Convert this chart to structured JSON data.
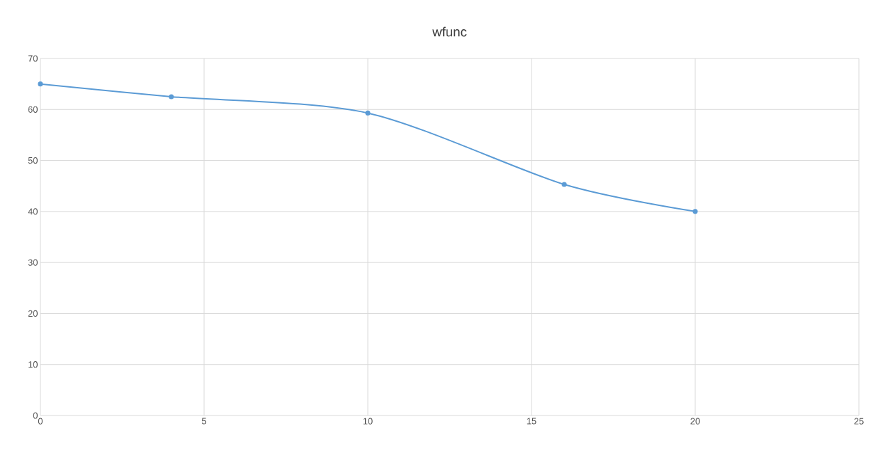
{
  "chart_data": {
    "type": "line",
    "title": "wfunc",
    "x": [
      0,
      4,
      10,
      16,
      20
    ],
    "series": [
      {
        "color": "#5b9bd5",
        "values": [
          65,
          62.5,
          59.3,
          45.3,
          40
        ]
      }
    ],
    "xlim": [
      0,
      25
    ],
    "xticks": [
      0,
      5,
      10,
      15,
      20,
      25
    ],
    "ylim": [
      0,
      70
    ],
    "yticks": [
      0,
      10,
      20,
      30,
      40,
      50,
      60,
      70
    ],
    "grid": true,
    "marker": "circle",
    "line_style": "solid"
  }
}
